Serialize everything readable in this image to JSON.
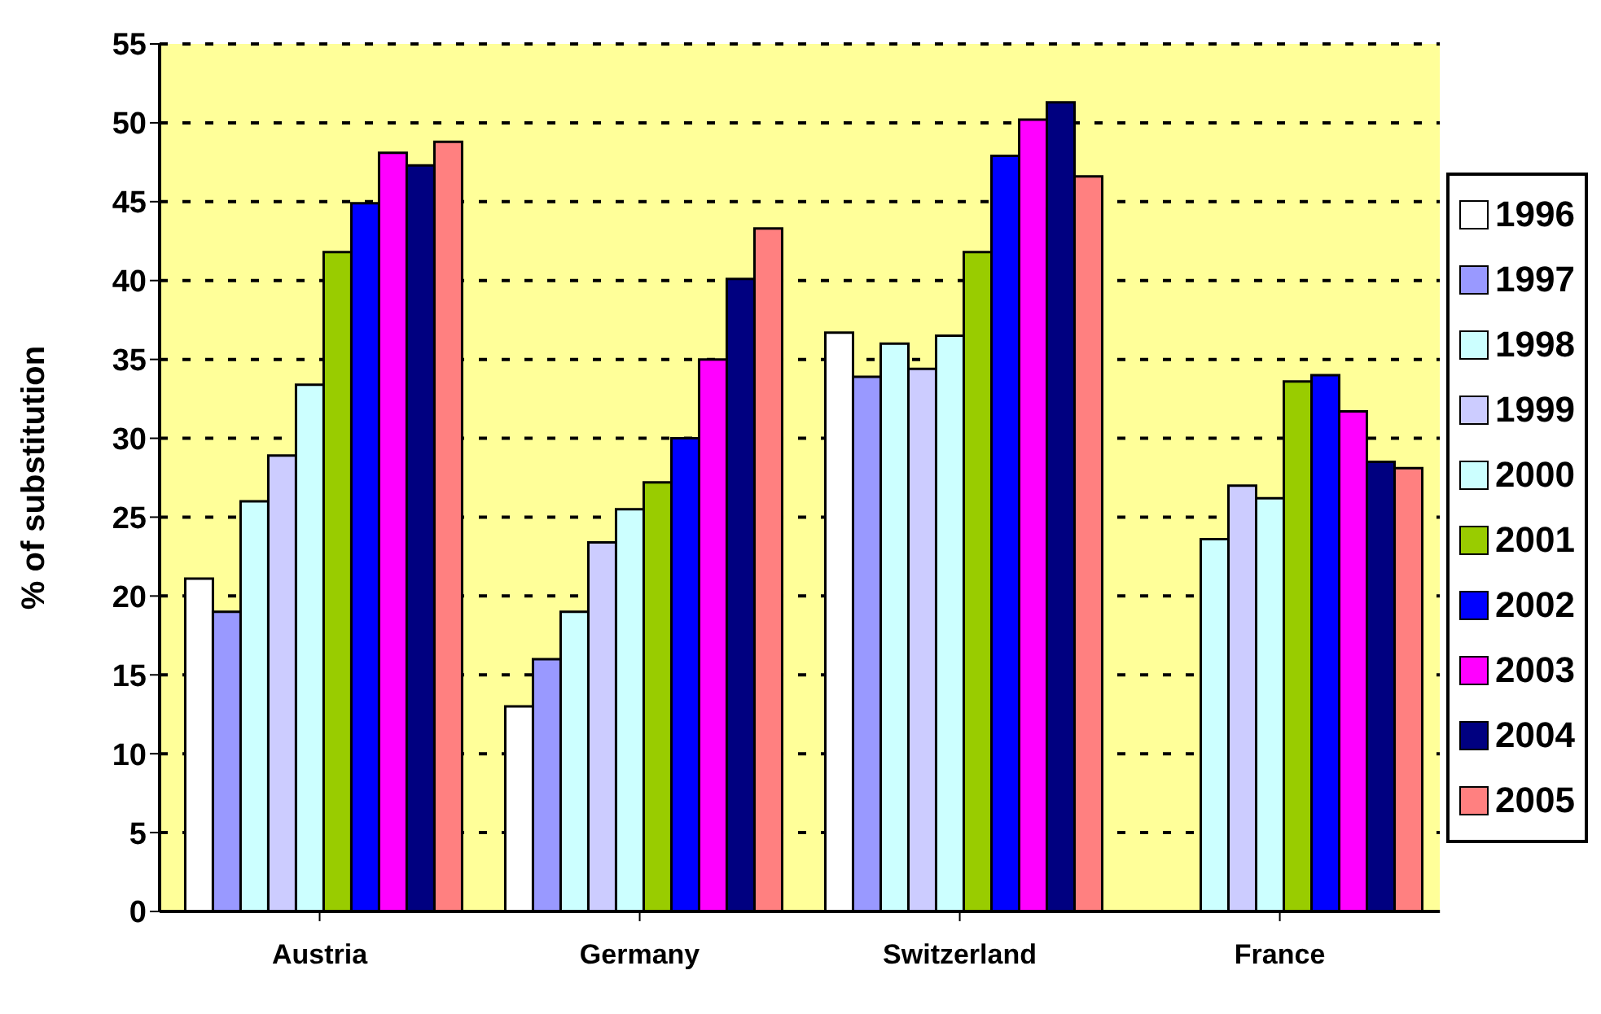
{
  "chart_data": {
    "type": "bar",
    "ylabel": "% of substitution",
    "categories": [
      "Austria",
      "Germany",
      "Switzerland",
      "France"
    ],
    "series": [
      {
        "name": "1996",
        "color": "#ffffff",
        "values": [
          21.1,
          13,
          36.7,
          null
        ]
      },
      {
        "name": "1997",
        "color": "#9999ff",
        "values": [
          19,
          16,
          33.9,
          null
        ]
      },
      {
        "name": "1998",
        "color": "#ccffff",
        "values": [
          26,
          19,
          36,
          23.6
        ]
      },
      {
        "name": "1999",
        "color": "#ccccff",
        "values": [
          28.9,
          23.4,
          34.4,
          27
        ]
      },
      {
        "name": "2000",
        "color": "#ccffff",
        "values": [
          33.4,
          25.5,
          36.5,
          26.2
        ]
      },
      {
        "name": "2001",
        "color": "#99cc00",
        "values": [
          41.8,
          27.2,
          41.8,
          33.6
        ]
      },
      {
        "name": "2002",
        "color": "#0000ff",
        "values": [
          44.9,
          30,
          47.9,
          34
        ]
      },
      {
        "name": "2003",
        "color": "#ff00ff",
        "values": [
          48.1,
          35,
          50.2,
          31.7
        ]
      },
      {
        "name": "2004",
        "color": "#000080",
        "values": [
          47.3,
          40.1,
          51.3,
          28.5
        ]
      },
      {
        "name": "2005",
        "color": "#ff8080",
        "values": [
          48.8,
          43.3,
          46.6,
          28.1
        ]
      }
    ],
    "ylim": [
      0,
      55
    ],
    "yticks": [
      0,
      5,
      10,
      15,
      20,
      25,
      30,
      35,
      40,
      45,
      50,
      55
    ],
    "grid": "y",
    "legend": "right"
  }
}
